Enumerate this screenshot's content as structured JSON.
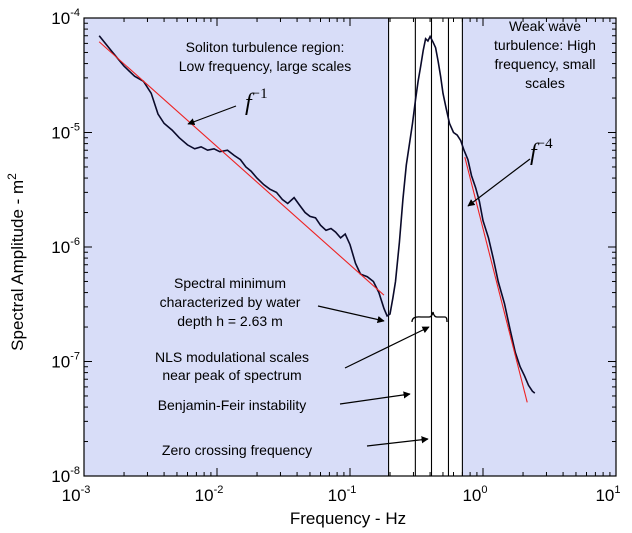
{
  "chart_data": {
    "type": "line",
    "title": "",
    "xlabel": "Frequency - Hz",
    "ylabel": "Spectral Amplitude - m",
    "ylabel_sup": "2",
    "xscale": "log",
    "yscale": "log",
    "xlim": [
      0.001,
      10
    ],
    "ylim": [
      1e-08,
      0.0001
    ],
    "x_ticks": [
      {
        "base": "10",
        "exp": "-3"
      },
      {
        "base": "10",
        "exp": "-2"
      },
      {
        "base": "10",
        "exp": "-1"
      },
      {
        "base": "10",
        "exp": "0"
      },
      {
        "base": "10",
        "exp": "1"
      }
    ],
    "y_ticks": [
      {
        "base": "10",
        "exp": "-8"
      },
      {
        "base": "10",
        "exp": "-7"
      },
      {
        "base": "10",
        "exp": "-6"
      },
      {
        "base": "10",
        "exp": "-5"
      },
      {
        "base": "10",
        "exp": "-4"
      }
    ],
    "background_color": "#d8ddf8",
    "band_color": "#ffffff",
    "spectrum_color": "#0a0a2a",
    "fit_color": "#ee2222",
    "white_band": [
      0.195,
      0.7
    ],
    "vertical_lines": [
      0.195,
      0.31,
      0.41,
      0.55,
      0.7
    ],
    "series": [
      {
        "type": "spectrum",
        "x": [
          0.0013,
          0.0016,
          0.002,
          0.0024,
          0.0028,
          0.0032,
          0.0036,
          0.004,
          0.0046,
          0.0052,
          0.006,
          0.0068,
          0.0076,
          0.0085,
          0.0095,
          0.0105,
          0.012,
          0.0135,
          0.015,
          0.0165,
          0.018,
          0.02,
          0.0225,
          0.025,
          0.028,
          0.031,
          0.034,
          0.038,
          0.042,
          0.046,
          0.05,
          0.055,
          0.06,
          0.066,
          0.072,
          0.078,
          0.085,
          0.092,
          0.1,
          0.11,
          0.12,
          0.135,
          0.15,
          0.165,
          0.18,
          0.19,
          0.2,
          0.21,
          0.22,
          0.235,
          0.25,
          0.265,
          0.28,
          0.295,
          0.31,
          0.325,
          0.34,
          0.355,
          0.37,
          0.385,
          0.4,
          0.42,
          0.44,
          0.46,
          0.48,
          0.5,
          0.53,
          0.56,
          0.6,
          0.64,
          0.68,
          0.72,
          0.77,
          0.82,
          0.88,
          0.94,
          1.0,
          1.1,
          1.2,
          1.3,
          1.45,
          1.6,
          1.75,
          1.9,
          2.05,
          2.2,
          2.35,
          2.45
        ],
        "y": [
          7e-05,
          5.2e-05,
          3.8e-05,
          3.1e-05,
          2.8e-05,
          2.2e-05,
          1.45e-05,
          1.2e-05,
          1.05e-05,
          9e-06,
          7.8e-06,
          7.2e-06,
          7.5e-06,
          7e-06,
          7.2e-06,
          6.8e-06,
          7e-06,
          6.3e-06,
          5.8e-06,
          5e-06,
          4.6e-06,
          4e-06,
          3.5e-06,
          3.2e-06,
          3e-06,
          2.6e-06,
          2.4e-06,
          2.7e-06,
          2.3e-06,
          2e-06,
          1.85e-06,
          1.8e-06,
          1.55e-06,
          1.4e-06,
          1.45e-06,
          1.35e-06,
          1.2e-06,
          1.3e-06,
          1.05e-06,
          7.2e-07,
          5.8e-07,
          5.5e-07,
          5e-07,
          4e-07,
          2.9e-07,
          2.5e-07,
          2.6e-07,
          3.6e-07,
          5e-07,
          1.1e-06,
          2.6e-06,
          5.2e-06,
          8e-06,
          1.2e-05,
          1.9e-05,
          2.8e-05,
          3.8e-05,
          5.2e-05,
          6.6e-05,
          6.3e-05,
          6.9e-05,
          6.2e-05,
          5.5e-05,
          4.2e-05,
          3.1e-05,
          2.2e-05,
          1.6e-05,
          1.2e-05,
          1e-05,
          9.5e-06,
          8.5e-06,
          7e-06,
          5.8e-06,
          4.2e-06,
          3.3e-06,
          2.5e-06,
          1.7e-06,
          1.2e-06,
          7.8e-07,
          5e-07,
          3.2e-07,
          1.9e-07,
          1.2e-07,
          9e-08,
          7.5e-08,
          6.2e-08,
          5.5e-08,
          5.3e-08
        ]
      },
      {
        "type": "fit",
        "label": "f^-1",
        "x": [
          0.0013,
          0.18
        ],
        "y": [
          6.2e-05,
          3.8e-07
        ]
      },
      {
        "type": "fit",
        "label": "f^-4",
        "x": [
          0.73,
          2.15
        ],
        "y": [
          6.1e-06,
          4.4e-08
        ]
      }
    ],
    "annotations": {
      "soliton": [
        "Soliton turbulence region:",
        "Low frequency, large scales"
      ],
      "weak": [
        "Weak wave",
        "turbulence: High",
        "frequency, small",
        "scales"
      ],
      "f1_base": "f",
      "f1_exp": "−1",
      "f4_base": "f",
      "f4_exp": "−4",
      "minimum": [
        "Spectral minimum",
        "characterized by water",
        "depth h = 2.63 m"
      ],
      "nls": [
        "NLS modulational scales",
        "near peak of spectrum"
      ],
      "bf": "Benjamin-Feir instability",
      "zero": "Zero crossing frequency"
    }
  }
}
